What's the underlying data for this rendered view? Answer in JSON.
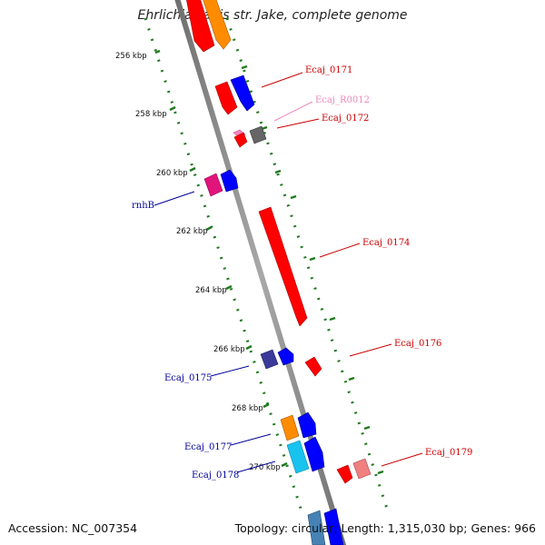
{
  "title": "Ehrlichia canis str. Jake, complete genome",
  "footer": {
    "accession": "Accession: NC_007354",
    "summary": "Topology: circular; Length: 1,315,030 bp; Genes: 966"
  },
  "scale": {
    "unit": "kbp",
    "ticks": [
      "256 kbp",
      "258 kbp",
      "260 kbp",
      "262 kbp",
      "264 kbp",
      "266 kbp",
      "268 kbp",
      "270 kbp"
    ]
  },
  "genes": [
    {
      "id": "ecaj-0171",
      "label": "Ecaj_0171",
      "color": "#cc0000"
    },
    {
      "id": "ecaj-r0012",
      "label": "Ecaj_R0012",
      "color": "#ee88bb"
    },
    {
      "id": "ecaj-0172",
      "label": "Ecaj_0172",
      "color": "#cc0000"
    },
    {
      "id": "rnhb",
      "label": "rnhB",
      "color": "#000099"
    },
    {
      "id": "ecaj-0174",
      "label": "Ecaj_0174",
      "color": "#cc0000"
    },
    {
      "id": "ecaj-0176",
      "label": "Ecaj_0176",
      "color": "#cc0000"
    },
    {
      "id": "ecaj-0175",
      "label": "Ecaj_0175",
      "color": "#000099"
    },
    {
      "id": "ecaj-0179",
      "label": "Ecaj_0179",
      "color": "#cc0000"
    },
    {
      "id": "ecaj-0177",
      "label": "Ecaj_0177",
      "color": "#000099"
    },
    {
      "id": "ecaj-0178",
      "label": "Ecaj_0178",
      "color": "#000099"
    }
  ],
  "colors": {
    "backbone": "#8a8a8a",
    "tick": "#1f7a1f",
    "red_feature": "#ff0000",
    "blue_feature": "#0000ff",
    "orange_feature": "#ff8c00",
    "magenta_feature": "#e0147a",
    "grey_feature": "#666666",
    "navy_feature": "#3a3a9a",
    "cyan_feature": "#19c3ef",
    "pink_feature": "#f08080"
  }
}
